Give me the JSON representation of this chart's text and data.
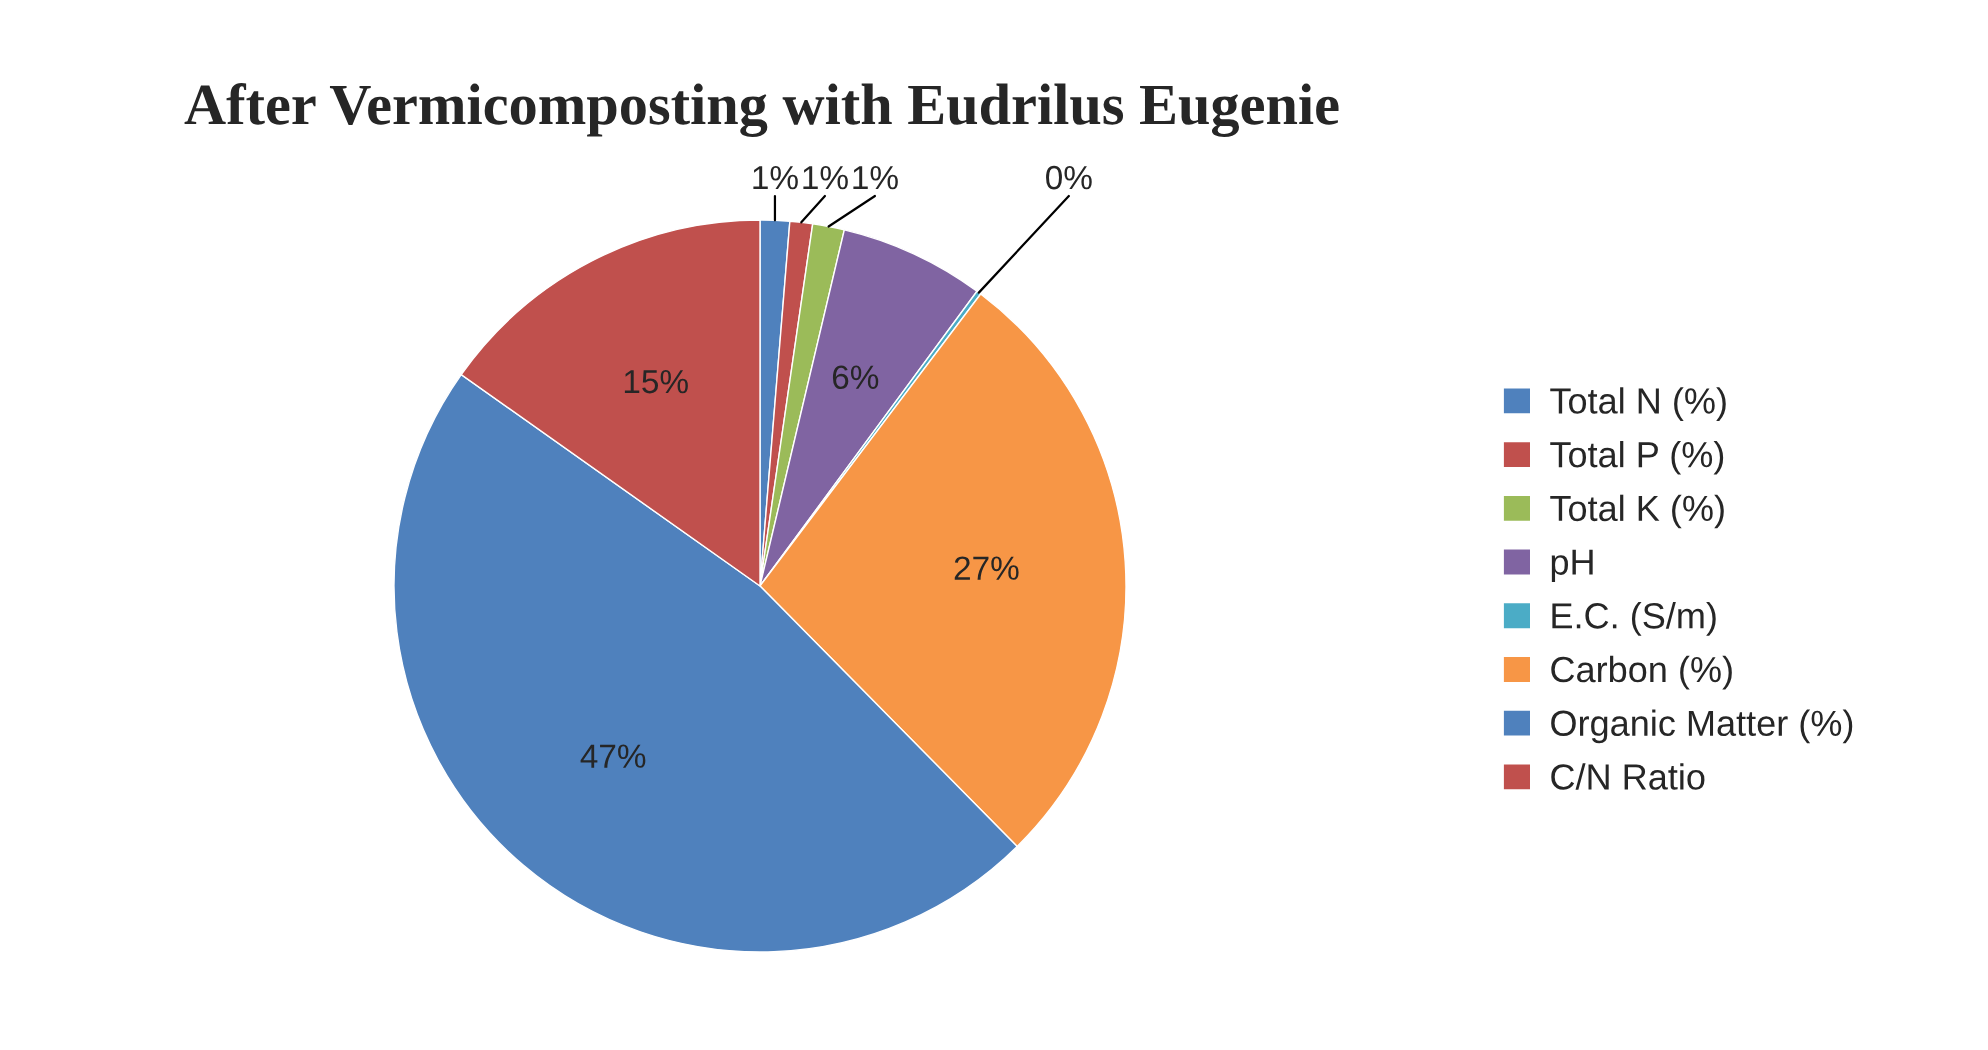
{
  "chart_data": {
    "type": "pie",
    "title": "After Vermicomposting with Eudrilus Eugenie",
    "categories": [
      "Total N (%)",
      "Total P (%)",
      "Total K (%)",
      "pH",
      "E.C. (S/m)",
      "Carbon (%)",
      "Organic Matter (%)",
      "C/N Ratio"
    ],
    "values": [
      1.3,
      1.0,
      1.4,
      6.4,
      0.2,
      27.3,
      47.2,
      15.2
    ],
    "colors": [
      "#4f81bd",
      "#c0504d",
      "#9bbb59",
      "#8064a2",
      "#4bacc6",
      "#f79646",
      "#4f81bd",
      "#c0504d"
    ],
    "value_labels": [
      "1%",
      "1%",
      "1%",
      "6%",
      "0%",
      "27%",
      "47%",
      "15%"
    ],
    "legend": "right"
  }
}
